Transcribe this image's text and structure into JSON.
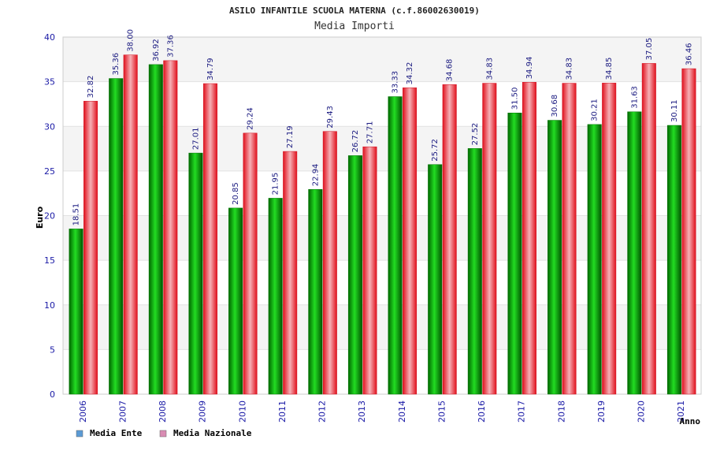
{
  "chart_data": {
    "type": "bar",
    "title": "ASILO INFANTILE SCUOLA MATERNA (c.f.86002630019)",
    "subtitle": "Media Importi",
    "xlabel": "Anno",
    "ylabel": "Euro",
    "ylim": [
      0,
      40
    ],
    "yticks": [
      0,
      5,
      10,
      15,
      20,
      25,
      30,
      35,
      40
    ],
    "grid": true,
    "legend_position": "bottom-left",
    "categories": [
      "2006",
      "2007",
      "2008",
      "2009",
      "2010",
      "2011",
      "2012",
      "2013",
      "2014",
      "2015",
      "2016",
      "2017",
      "2018",
      "2019",
      "2020",
      "2021"
    ],
    "series": [
      {
        "name": "Media Ente",
        "color": "#00aa00",
        "legend_color": "#5b9bd5",
        "values": [
          18.51,
          35.36,
          36.92,
          27.01,
          20.85,
          21.95,
          22.94,
          26.72,
          33.33,
          25.72,
          27.52,
          31.5,
          30.68,
          30.21,
          31.63,
          30.11
        ],
        "labels": [
          "18.51",
          "35.36",
          "36.92",
          "27.01",
          "20.85",
          "21.95",
          "22.94",
          "26.72",
          "33.33",
          "25.72",
          "27.52",
          "31.50",
          "30.68",
          "30.21",
          "31.63",
          "30.11"
        ]
      },
      {
        "name": "Media Nazionale",
        "color": "#e3202a",
        "legend_color": "#d98cb3",
        "values": [
          32.82,
          38.0,
          37.36,
          34.79,
          29.24,
          27.19,
          29.43,
          27.71,
          34.32,
          34.68,
          34.83,
          34.94,
          34.83,
          34.85,
          37.05,
          36.46
        ],
        "labels": [
          "32.82",
          "38.00",
          "37.36",
          "34.79",
          "29.24",
          "27.19",
          "29.43",
          "27.71",
          "34.32",
          "34.68",
          "34.83",
          "34.94",
          "34.83",
          "34.85",
          "37.05",
          "36.46"
        ]
      }
    ]
  }
}
